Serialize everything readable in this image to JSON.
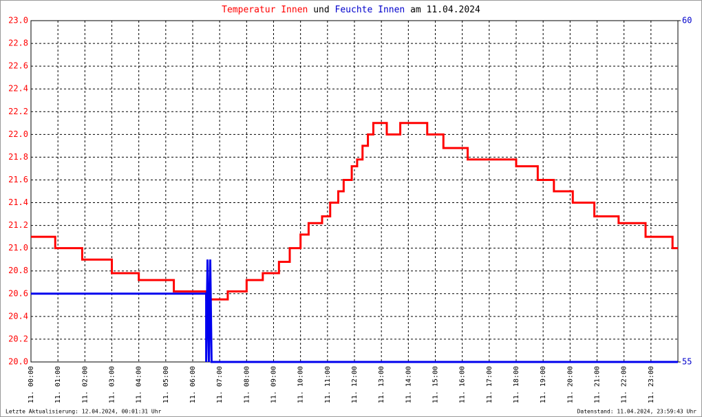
{
  "chart_data": {
    "type": "line",
    "title_parts": [
      {
        "text": "Temperatur Innen",
        "color": "#ff0000"
      },
      {
        "text": "und",
        "color": "#000000"
      },
      {
        "text": "Feuchte Innen",
        "color": "#0000cc"
      },
      {
        "text": "am 11.04.2024",
        "color": "#000000"
      }
    ],
    "footer_left": "Letzte Aktualisierung: 12.04.2024, 00:01:31 Uhr",
    "footer_right": "Datenstand: 11.04.2024, 23:59:43 Uhr",
    "xlim": [
      0,
      24
    ],
    "xticks": [
      {
        "value": 0,
        "label": "11. 00:00"
      },
      {
        "value": 1,
        "label": "11. 01:00"
      },
      {
        "value": 2,
        "label": "11. 02:00"
      },
      {
        "value": 3,
        "label": "11. 03:00"
      },
      {
        "value": 4,
        "label": "11. 04:00"
      },
      {
        "value": 5,
        "label": "11. 05:00"
      },
      {
        "value": 6,
        "label": "11. 06:00"
      },
      {
        "value": 7,
        "label": "11. 07:00"
      },
      {
        "value": 8,
        "label": "11. 08:00"
      },
      {
        "value": 9,
        "label": "11. 09:00"
      },
      {
        "value": 10,
        "label": "11. 10:00"
      },
      {
        "value": 11,
        "label": "11. 11:00"
      },
      {
        "value": 12,
        "label": "11. 12:00"
      },
      {
        "value": 13,
        "label": "11. 13:00"
      },
      {
        "value": 14,
        "label": "11. 14:00"
      },
      {
        "value": 15,
        "label": "11. 15:00"
      },
      {
        "value": 16,
        "label": "11. 16:00"
      },
      {
        "value": 17,
        "label": "11. 17:00"
      },
      {
        "value": 18,
        "label": "11. 18:00"
      },
      {
        "value": 19,
        "label": "11. 19:00"
      },
      {
        "value": 20,
        "label": "11. 20:00"
      },
      {
        "value": 21,
        "label": "11. 21:00"
      },
      {
        "value": 22,
        "label": "11. 22:00"
      },
      {
        "value": 23,
        "label": "11. 23:00"
      }
    ],
    "ylim": [
      20,
      23
    ],
    "yticks": [
      {
        "value": 20,
        "label": "20.0"
      },
      {
        "value": 20.2,
        "label": "20.2"
      },
      {
        "value": 20.4,
        "label": "20.4"
      },
      {
        "value": 20.6,
        "label": "20.6"
      },
      {
        "value": 20.8,
        "label": "20.8"
      },
      {
        "value": 21,
        "label": "21.0"
      },
      {
        "value": 21.2,
        "label": "21.2"
      },
      {
        "value": 21.4,
        "label": "21.4"
      },
      {
        "value": 21.6,
        "label": "21.6"
      },
      {
        "value": 21.8,
        "label": "21.8"
      },
      {
        "value": 22,
        "label": "22.0"
      },
      {
        "value": 22.2,
        "label": "22.2"
      },
      {
        "value": 22.4,
        "label": "22.4"
      },
      {
        "value": 22.6,
        "label": "22.6"
      },
      {
        "value": 22.8,
        "label": "22.8"
      },
      {
        "value": 23,
        "label": "23.0"
      }
    ],
    "y2lim": [
      55,
      60
    ],
    "y2ticks": [
      55,
      60
    ],
    "grid": true,
    "series": [
      {
        "name": "Temperatur Innen",
        "color": "#ff0000",
        "x": [
          0,
          0.9,
          0.9,
          1.9,
          1.9,
          3.0,
          3.0,
          4.0,
          4.0,
          5.3,
          5.3,
          6.5,
          6.5,
          7.3,
          7.3,
          8.0,
          8.0,
          8.6,
          8.6,
          9.2,
          9.2,
          9.6,
          9.6,
          10.0,
          10.0,
          10.3,
          10.3,
          10.8,
          10.8,
          11.1,
          11.1,
          11.4,
          11.4,
          11.6,
          11.6,
          11.9,
          11.9,
          12.1,
          12.1,
          12.3,
          12.3,
          12.5,
          12.5,
          12.7,
          12.7,
          13.2,
          13.2,
          13.7,
          13.7,
          14.7,
          14.7,
          15.3,
          15.3,
          16.2,
          16.2,
          18.0,
          18.0,
          18.8,
          18.8,
          19.4,
          19.4,
          20.1,
          20.1,
          20.9,
          20.9,
          21.8,
          21.8,
          22.8,
          22.8,
          23.8,
          23.8,
          24
        ],
        "values": [
          21.1,
          21.1,
          21.0,
          21.0,
          20.9,
          20.9,
          20.78,
          20.78,
          20.72,
          20.72,
          20.62,
          20.62,
          20.55,
          20.55,
          20.62,
          20.62,
          20.72,
          20.72,
          20.78,
          20.78,
          20.88,
          20.88,
          21.0,
          21.0,
          21.12,
          21.12,
          21.22,
          21.22,
          21.28,
          21.28,
          21.4,
          21.4,
          21.5,
          21.5,
          21.6,
          21.6,
          21.72,
          21.72,
          21.78,
          21.78,
          21.9,
          21.9,
          22.0,
          22.0,
          22.1,
          22.1,
          22.0,
          22.0,
          22.1,
          22.1,
          22.0,
          22.0,
          21.88,
          21.88,
          21.78,
          21.78,
          21.72,
          21.72,
          21.6,
          21.6,
          21.5,
          21.5,
          21.4,
          21.4,
          21.28,
          21.28,
          21.22,
          21.22,
          21.1,
          21.1,
          21.0,
          21.0
        ]
      },
      {
        "name": "Feuchte Innen",
        "color": "#0000ee",
        "axis": "y2",
        "x": [
          0,
          6.5,
          6.5,
          6.55,
          6.6,
          6.65,
          6.7,
          24
        ],
        "values": [
          56,
          56,
          55,
          56.5,
          55,
          56.5,
          55,
          55
        ]
      }
    ]
  }
}
